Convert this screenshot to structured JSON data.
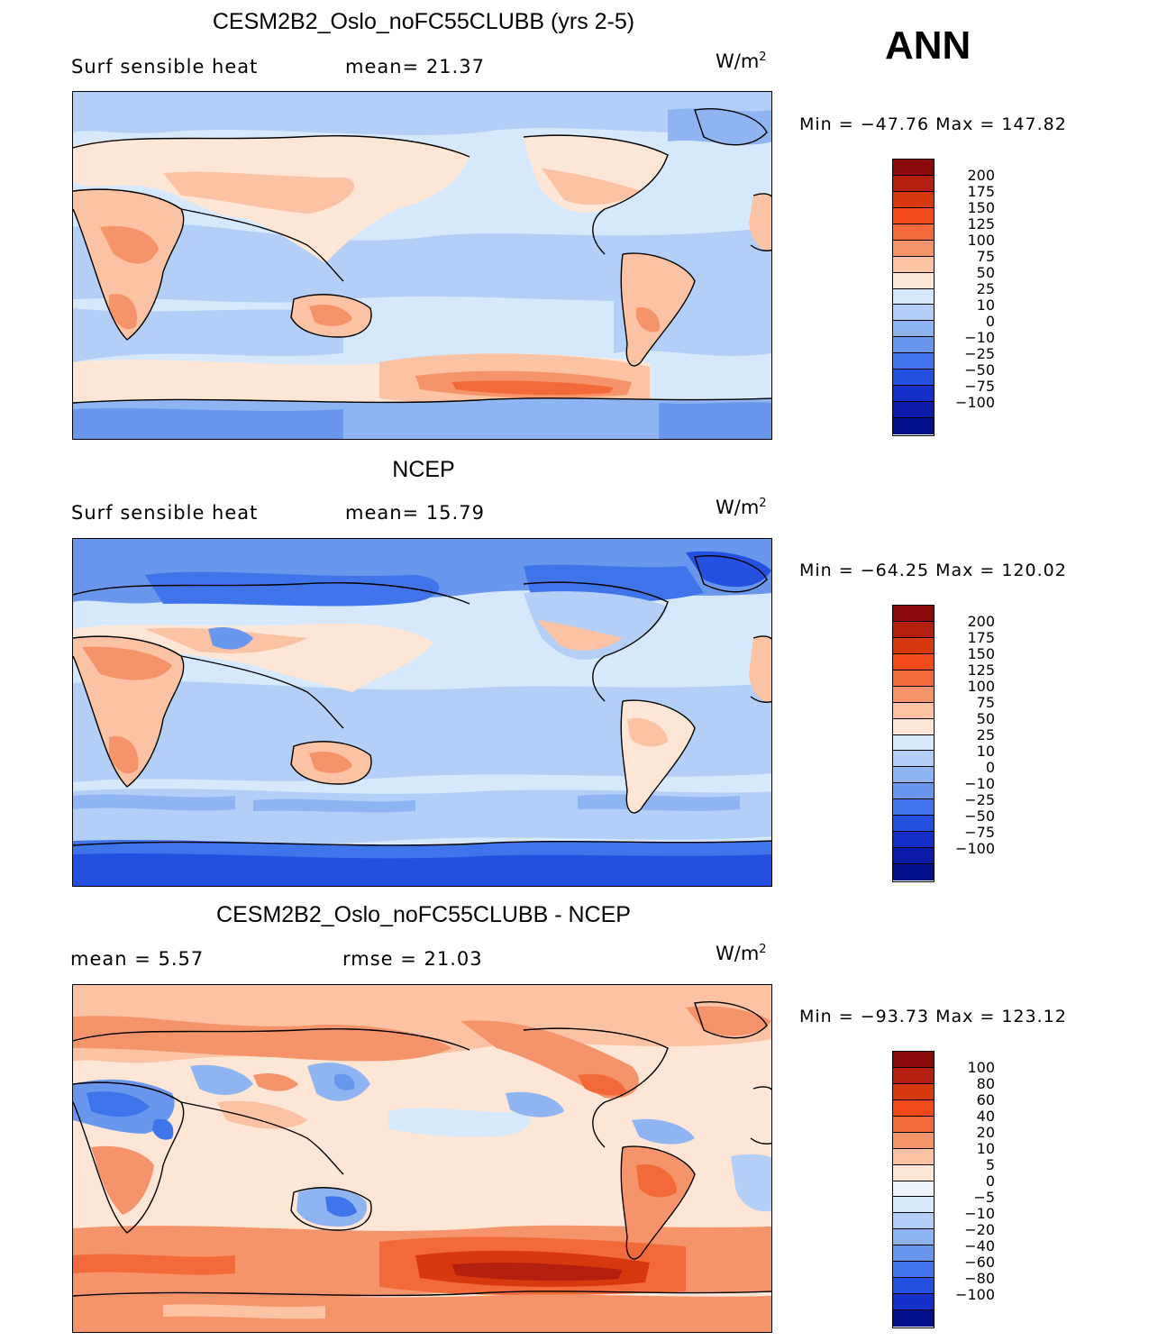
{
  "season": "ANN",
  "panels": [
    {
      "title": "CESM2B2_Oslo_noFC55CLUBB (yrs 2-5)",
      "left_text": "Surf  sensible  heat",
      "mid_text": "mean=   21.37",
      "units": "W/m",
      "units_exp": "2",
      "minmax": "Min  =  −47.76  Max  =  147.82",
      "colorbar": {
        "colors": [
          "#8b0a0a",
          "#b32010",
          "#d8380d",
          "#f04a1a",
          "#f26a3a",
          "#f5936a",
          "#fbc2a4",
          "#fde6d6",
          "#d6e8fb",
          "#b3cff7",
          "#8fb4f2",
          "#6a97ee",
          "#3f74ea",
          "#2450e0",
          "#1430c8",
          "#0a1ca8",
          "#04108a"
        ],
        "labels": [
          "200",
          "175",
          "150",
          "125",
          "100",
          "75",
          "50",
          "25",
          "10",
          "0",
          "−10",
          "−25",
          "−50",
          "−75",
          "−100"
        ]
      }
    },
    {
      "title": "NCEP",
      "left_text": "Surf  sensible  heat",
      "mid_text": "mean=   15.79",
      "units": "W/m",
      "units_exp": "2",
      "minmax": "Min  =  −64.25  Max  =  120.02",
      "colorbar": {
        "colors": [
          "#8b0a0a",
          "#b32010",
          "#d8380d",
          "#f04a1a",
          "#f26a3a",
          "#f5936a",
          "#fbc2a4",
          "#fde6d6",
          "#d6e8fb",
          "#b3cff7",
          "#8fb4f2",
          "#6a97ee",
          "#3f74ea",
          "#2450e0",
          "#1430c8",
          "#0a1ca8",
          "#04108a"
        ],
        "labels": [
          "200",
          "175",
          "150",
          "125",
          "100",
          "75",
          "50",
          "25",
          "10",
          "0",
          "−10",
          "−25",
          "−50",
          "−75",
          "−100"
        ]
      }
    },
    {
      "title": "CESM2B2_Oslo_noFC55CLUBB - NCEP",
      "left_text": "mean  =      5.57",
      "mid_text": "rmse  =     21.03",
      "units": "W/m",
      "units_exp": "2",
      "minmax": "Min  =  −93.73  Max  =  123.12",
      "colorbar": {
        "colors": [
          "#8b0a0a",
          "#b32010",
          "#d8380d",
          "#f04a1a",
          "#f26a3a",
          "#f5936a",
          "#fbc2a4",
          "#fde6d6",
          "#eef4fc",
          "#d6e8fb",
          "#b3cff7",
          "#8fb4f2",
          "#6a97ee",
          "#3f74ea",
          "#2450e0",
          "#1430c8",
          "#04108a"
        ],
        "labels": [
          "100",
          "80",
          "60",
          "40",
          "20",
          "10",
          "5",
          "0",
          "−5",
          "−10",
          "−20",
          "−40",
          "−60",
          "−80",
          "−100"
        ]
      }
    }
  ]
}
